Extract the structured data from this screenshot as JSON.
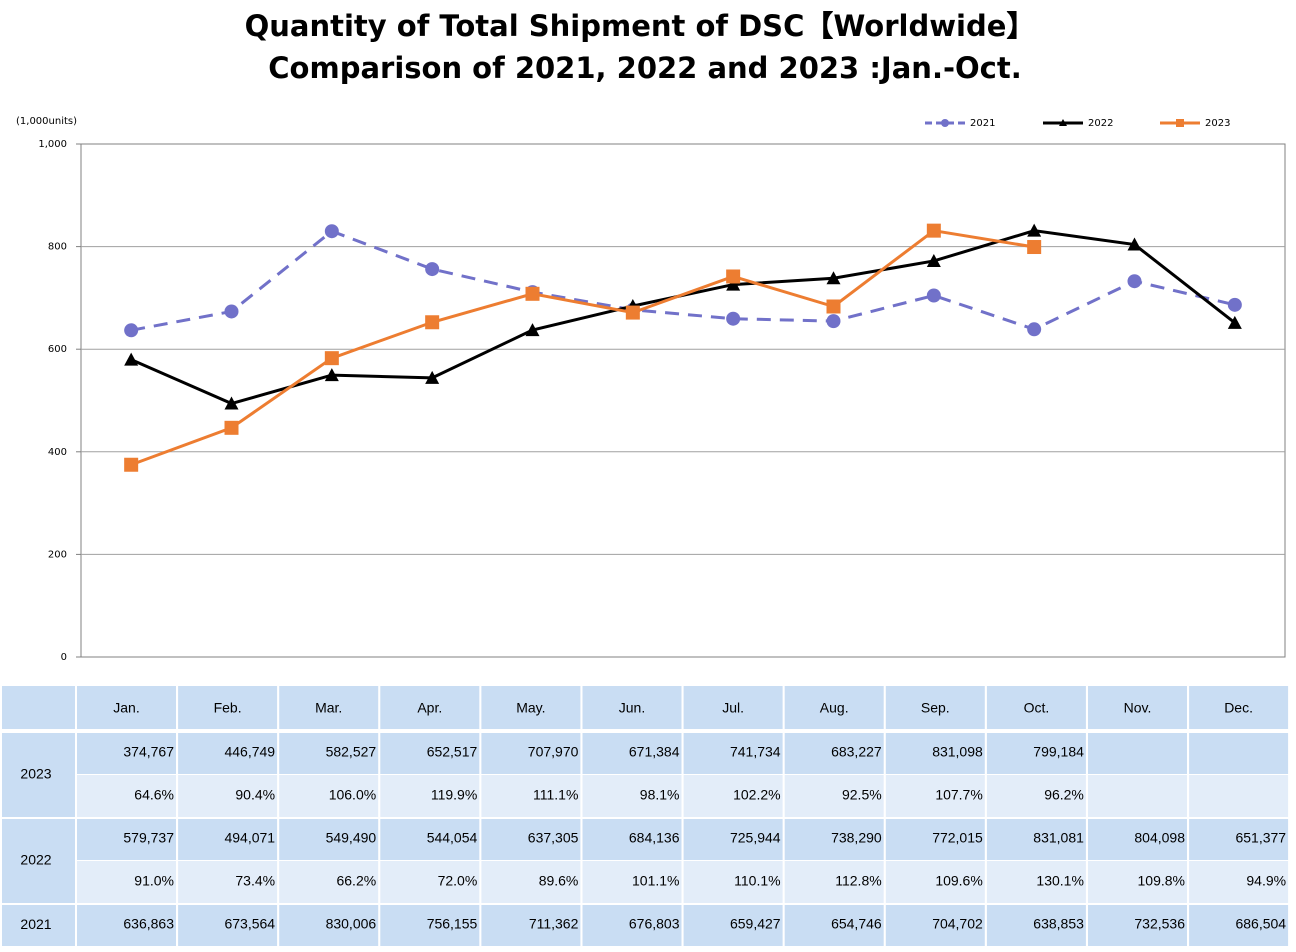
{
  "chart_data": {
    "type": "line",
    "title": "Quantity of Total Shipment of DSC【Worldwide】",
    "subtitle": "Comparison of 2021, 2022 and 2023 :Jan.-Oct.",
    "y_label": "(1,000units)",
    "categories": [
      "Jan.",
      "Feb.",
      "Mar.",
      "Apr.",
      "May.",
      "Jun.",
      "Jul.",
      "Aug.",
      "Sep.",
      "Oct.",
      "Nov.",
      "Dec."
    ],
    "ylim": [
      0,
      1000
    ],
    "yticks": [
      0,
      200,
      400,
      600,
      800,
      {
        "value": 1000,
        "label": "1,000"
      }
    ],
    "grid": true,
    "legend": "top-right",
    "series": [
      {
        "name": "2021",
        "color": "#7171c9",
        "dash": true,
        "marker": "circle",
        "values": [
          636.863,
          673.564,
          830.006,
          756.155,
          711.362,
          676.803,
          659.427,
          654.746,
          704.702,
          638.853,
          732.536,
          686.504
        ],
        "value_labels": [
          "636,863",
          "673,564",
          "830,006",
          "756,155",
          "711,362",
          "676,803",
          "659,427",
          "654,746",
          "704,702",
          "638,853",
          "732,536",
          "686,504"
        ]
      },
      {
        "name": "2022",
        "color": "#000000",
        "dash": false,
        "marker": "triangle",
        "values": [
          579.737,
          494.071,
          549.49,
          544.054,
          637.305,
          684.136,
          725.944,
          738.29,
          772.015,
          831.081,
          804.098,
          651.377
        ],
        "value_labels": [
          "579,737",
          "494,071",
          "549,490",
          "544,054",
          "637,305",
          "684,136",
          "725,944",
          "738,290",
          "772,015",
          "831,081",
          "804,098",
          "651,377"
        ],
        "ratios": [
          "91.0%",
          "73.4%",
          "66.2%",
          "72.0%",
          "89.6%",
          "101.1%",
          "110.1%",
          "112.8%",
          "109.6%",
          "130.1%",
          "109.8%",
          "94.9%"
        ]
      },
      {
        "name": "2023",
        "color": "#ed7d31",
        "dash": false,
        "marker": "square",
        "values": [
          374.767,
          446.749,
          582.527,
          652.517,
          707.97,
          671.384,
          741.734,
          683.227,
          831.098,
          799.184,
          null,
          null
        ],
        "value_labels": [
          "374,767",
          "446,749",
          "582,527",
          "652,517",
          "707,970",
          "671,384",
          "741,734",
          "683,227",
          "831,098",
          "799,184",
          null,
          null
        ],
        "ratios": [
          "64.6%",
          "90.4%",
          "106.0%",
          "119.9%",
          "111.1%",
          "98.1%",
          "102.2%",
          "92.5%",
          "107.7%",
          "96.2%",
          null,
          null
        ]
      }
    ]
  }
}
